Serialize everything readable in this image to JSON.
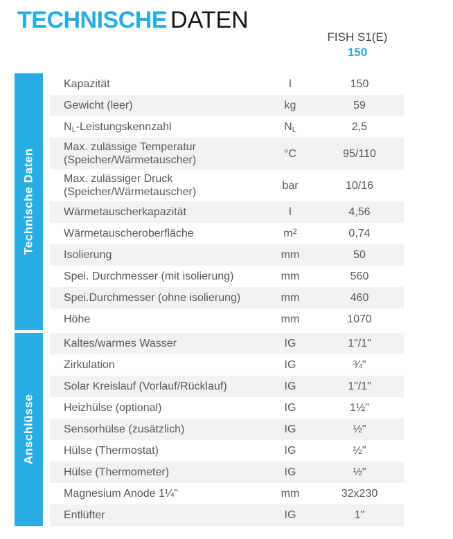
{
  "colors": {
    "accent": "#27ADE4",
    "row_shade": "#F2F2F2",
    "text": "#57585A"
  },
  "title": {
    "primary": "TECHNISCHE",
    "secondary": "DATEN"
  },
  "product": {
    "name": "FISH S1(E)",
    "model": "150"
  },
  "sections": [
    {
      "label": "Technische Daten",
      "first_row_shaded": false,
      "rows": [
        {
          "label": "Kapazität",
          "unit": "l",
          "value": "150"
        },
        {
          "label": "Gewicht (leer)",
          "unit": "kg",
          "value": "59"
        },
        {
          "label": "N_{L}-Leistungskennzahl",
          "unit": "N_{L}",
          "value": "2,5"
        },
        {
          "label": "Max. zulässige Temperatur (Speicher/Wärmetauscher)",
          "unit": "°C",
          "value": "95/110"
        },
        {
          "label": "Max. zulässiger Druck (Speicher/Wärmetauscher)",
          "unit": "bar",
          "value": "10/16"
        },
        {
          "label": "Wärmetauscherkapazität",
          "unit": "l",
          "value": "4,56"
        },
        {
          "label": "Wärmetauscheroberfläche",
          "unit": "m^{2}",
          "value": "0,74"
        },
        {
          "label": "Isolierung",
          "unit": "mm",
          "value": "50"
        },
        {
          "label": "Spei. Durchmesser (mit isolierung)",
          "unit": "mm",
          "value": "560"
        },
        {
          "label": "Spei.Durchmesser (ohne isolierung)",
          "unit": "mm",
          "value": "460"
        },
        {
          "label": "Höhe",
          "unit": "mm",
          "value": "1070"
        }
      ]
    },
    {
      "label": "Anschlüsse",
      "first_row_shaded": true,
      "rows": [
        {
          "label": "Kaltes/warmes Wasser",
          "unit": "IG",
          "value": "1\"/1\""
        },
        {
          "label": "Zirkulation",
          "unit": "IG",
          "value": "¾\""
        },
        {
          "label": "Solar Kreislauf (Vorlauf/Rücklauf)",
          "unit": "IG",
          "value": "1\"/1\""
        },
        {
          "label": "Heizhülse (optional)",
          "unit": "IG",
          "value": "1½\""
        },
        {
          "label": "Sensorhülse (zusätzlich)",
          "unit": "IG",
          "value": "½\""
        },
        {
          "label": "Hülse (Thermostat)",
          "unit": "IG",
          "value": "½\""
        },
        {
          "label": "Hülse (Thermometer)",
          "unit": "IG",
          "value": "½\""
        },
        {
          "label": "Magnesium Anode 1¼\"",
          "unit": "mm",
          "value": "32x230"
        },
        {
          "label": "Entlüfter",
          "unit": "IG",
          "value": "1\""
        }
      ]
    }
  ]
}
